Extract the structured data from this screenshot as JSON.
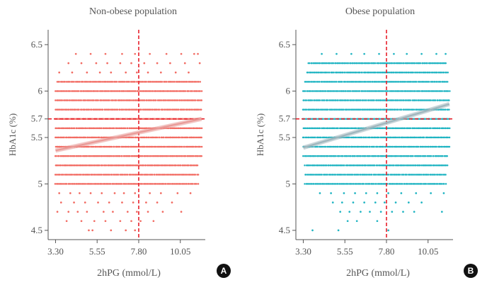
{
  "chart_data": [
    {
      "type": "scatter",
      "panel_label": "A",
      "title": "Non-obese population",
      "xlabel": "2hPG (mmol/L)",
      "ylabel": "HbA1c (%)",
      "xlim": [
        2.9,
        11.4
      ],
      "ylim": [
        4.4,
        6.66
      ],
      "xticks": [
        3.3,
        5.55,
        7.8,
        10.05
      ],
      "xtick_labels": [
        "3.30",
        "5.55",
        "7.80",
        "10.05"
      ],
      "yticks": [
        4.5,
        5,
        5.5,
        5.7,
        6,
        6.5
      ],
      "ytick_labels": [
        "4.5",
        "5",
        "5.5",
        "5.7",
        "6",
        "6.5"
      ],
      "threshold_x": 7.8,
      "threshold_y": 5.7,
      "point_color": "#f26b62",
      "trend_color": "#e99a97",
      "threshold_color": "#e8202a",
      "trend_line": {
        "x": [
          3.3,
          11.2
        ],
        "y": [
          5.36,
          5.7
        ]
      },
      "strata": [
        {
          "y": 4.5,
          "x": [
            5.1,
            5.3,
            6.3,
            7.1,
            7.6
          ]
        },
        {
          "y": 4.6,
          "x": [
            3.9,
            4.7,
            5.4,
            6.0,
            6.8,
            7.4,
            7.9,
            8.6
          ]
        },
        {
          "y": 4.7,
          "x": [
            3.4,
            4.0,
            4.5,
            5.0,
            5.9,
            6.4,
            7.2,
            7.7,
            8.3,
            9.1,
            10.1
          ]
        },
        {
          "y": 4.8,
          "x": [
            3.6,
            4.3,
            4.9,
            5.6,
            6.2,
            6.9,
            7.5,
            8.2,
            8.8,
            9.6
          ]
        },
        {
          "y": 4.9,
          "x": [
            3.5,
            4.1,
            4.6,
            5.2,
            5.8,
            6.5,
            7.0,
            7.6,
            8.4,
            9.0,
            9.9,
            10.6
          ]
        },
        {
          "y": 6.2,
          "x": [
            3.5,
            4.2,
            5.0,
            5.7,
            6.3,
            7.1,
            7.7,
            8.3,
            9.0,
            9.8,
            10.5
          ]
        },
        {
          "y": 6.3,
          "x": [
            4.0,
            4.7,
            5.5,
            6.1,
            6.8,
            7.4,
            8.1,
            8.8,
            9.5,
            10.3,
            11.1
          ]
        },
        {
          "y": 6.4,
          "x": [
            4.4,
            5.2,
            6.0,
            6.9,
            7.6,
            8.4,
            9.3,
            10.1,
            10.8,
            11.0
          ]
        }
      ],
      "dense_strata": [
        {
          "y": 5.0,
          "x_min": 3.3,
          "x_max": 11.0
        },
        {
          "y": 5.1,
          "x_min": 3.3,
          "x_max": 11.0
        },
        {
          "y": 5.2,
          "x_min": 3.3,
          "x_max": 11.0
        },
        {
          "y": 5.3,
          "x_min": 3.3,
          "x_max": 11.2
        },
        {
          "y": 5.4,
          "x_min": 3.3,
          "x_max": 11.2
        },
        {
          "y": 5.5,
          "x_min": 3.3,
          "x_max": 11.2
        },
        {
          "y": 5.6,
          "x_min": 3.3,
          "x_max": 11.2
        },
        {
          "y": 5.7,
          "x_min": 3.3,
          "x_max": 11.2
        },
        {
          "y": 5.8,
          "x_min": 3.3,
          "x_max": 11.2
        },
        {
          "y": 5.9,
          "x_min": 3.3,
          "x_max": 11.2
        },
        {
          "y": 6.0,
          "x_min": 3.3,
          "x_max": 11.2
        },
        {
          "y": 6.1,
          "x_min": 3.4,
          "x_max": 11.1
        }
      ]
    },
    {
      "type": "scatter",
      "panel_label": "B",
      "title": "Obese population",
      "xlabel": "2hPG (mmol/L)",
      "ylabel": "HbA1c (%)",
      "xlim": [
        2.9,
        11.4
      ],
      "ylim": [
        4.4,
        6.66
      ],
      "xticks": [
        3.3,
        5.55,
        7.8,
        10.05
      ],
      "xtick_labels": [
        "3.30",
        "5.55",
        "7.80",
        "10.05"
      ],
      "yticks": [
        4.5,
        5,
        5.5,
        5.7,
        6,
        6.5
      ],
      "ytick_labels": [
        "4.5",
        "5",
        "5.5",
        "5.7",
        "6",
        "6.5"
      ],
      "threshold_x": 7.8,
      "threshold_y": 5.7,
      "point_color": "#1fb4c2",
      "trend_color": "#9fb6bd",
      "threshold_color": "#e8202a",
      "trend_line": {
        "x": [
          3.3,
          11.2
        ],
        "y": [
          5.39,
          5.86
        ]
      },
      "strata": [
        {
          "y": 4.5,
          "x": [
            3.8,
            5.2,
            7.9
          ]
        },
        {
          "y": 4.6,
          "x": [
            5.7,
            6.2,
            7.3
          ]
        },
        {
          "y": 4.7,
          "x": [
            5.3,
            5.8,
            6.4,
            6.9,
            7.5,
            8.1,
            8.7,
            9.3,
            10.8
          ]
        },
        {
          "y": 4.8,
          "x": [
            4.9,
            5.4,
            6.0,
            6.6,
            7.2,
            7.7,
            8.3,
            9.0,
            9.7
          ]
        },
        {
          "y": 4.9,
          "x": [
            4.2,
            4.8,
            5.5,
            6.1,
            6.7,
            7.3,
            7.9,
            8.6,
            9.4,
            10.2,
            10.9
          ]
        },
        {
          "y": 6.4,
          "x": [
            4.3,
            5.1,
            5.9,
            6.6,
            7.4,
            8.2,
            8.9,
            9.7,
            10.5,
            11.0
          ]
        }
      ],
      "dense_strata": [
        {
          "y": 5.0,
          "x_min": 3.4,
          "x_max": 11.0
        },
        {
          "y": 5.1,
          "x_min": 3.4,
          "x_max": 11.0
        },
        {
          "y": 5.2,
          "x_min": 3.4,
          "x_max": 11.1
        },
        {
          "y": 5.3,
          "x_min": 3.3,
          "x_max": 11.1
        },
        {
          "y": 5.4,
          "x_min": 3.3,
          "x_max": 11.2
        },
        {
          "y": 5.5,
          "x_min": 3.3,
          "x_max": 11.2
        },
        {
          "y": 5.6,
          "x_min": 3.3,
          "x_max": 11.2
        },
        {
          "y": 5.7,
          "x_min": 3.3,
          "x_max": 11.2
        },
        {
          "y": 5.8,
          "x_min": 3.3,
          "x_max": 11.2
        },
        {
          "y": 5.9,
          "x_min": 3.3,
          "x_max": 11.2
        },
        {
          "y": 6.0,
          "x_min": 3.3,
          "x_max": 11.2
        },
        {
          "y": 6.1,
          "x_min": 3.4,
          "x_max": 11.1
        },
        {
          "y": 6.2,
          "x_min": 3.5,
          "x_max": 11.1
        },
        {
          "y": 6.3,
          "x_min": 3.6,
          "x_max": 11.0
        }
      ]
    }
  ]
}
